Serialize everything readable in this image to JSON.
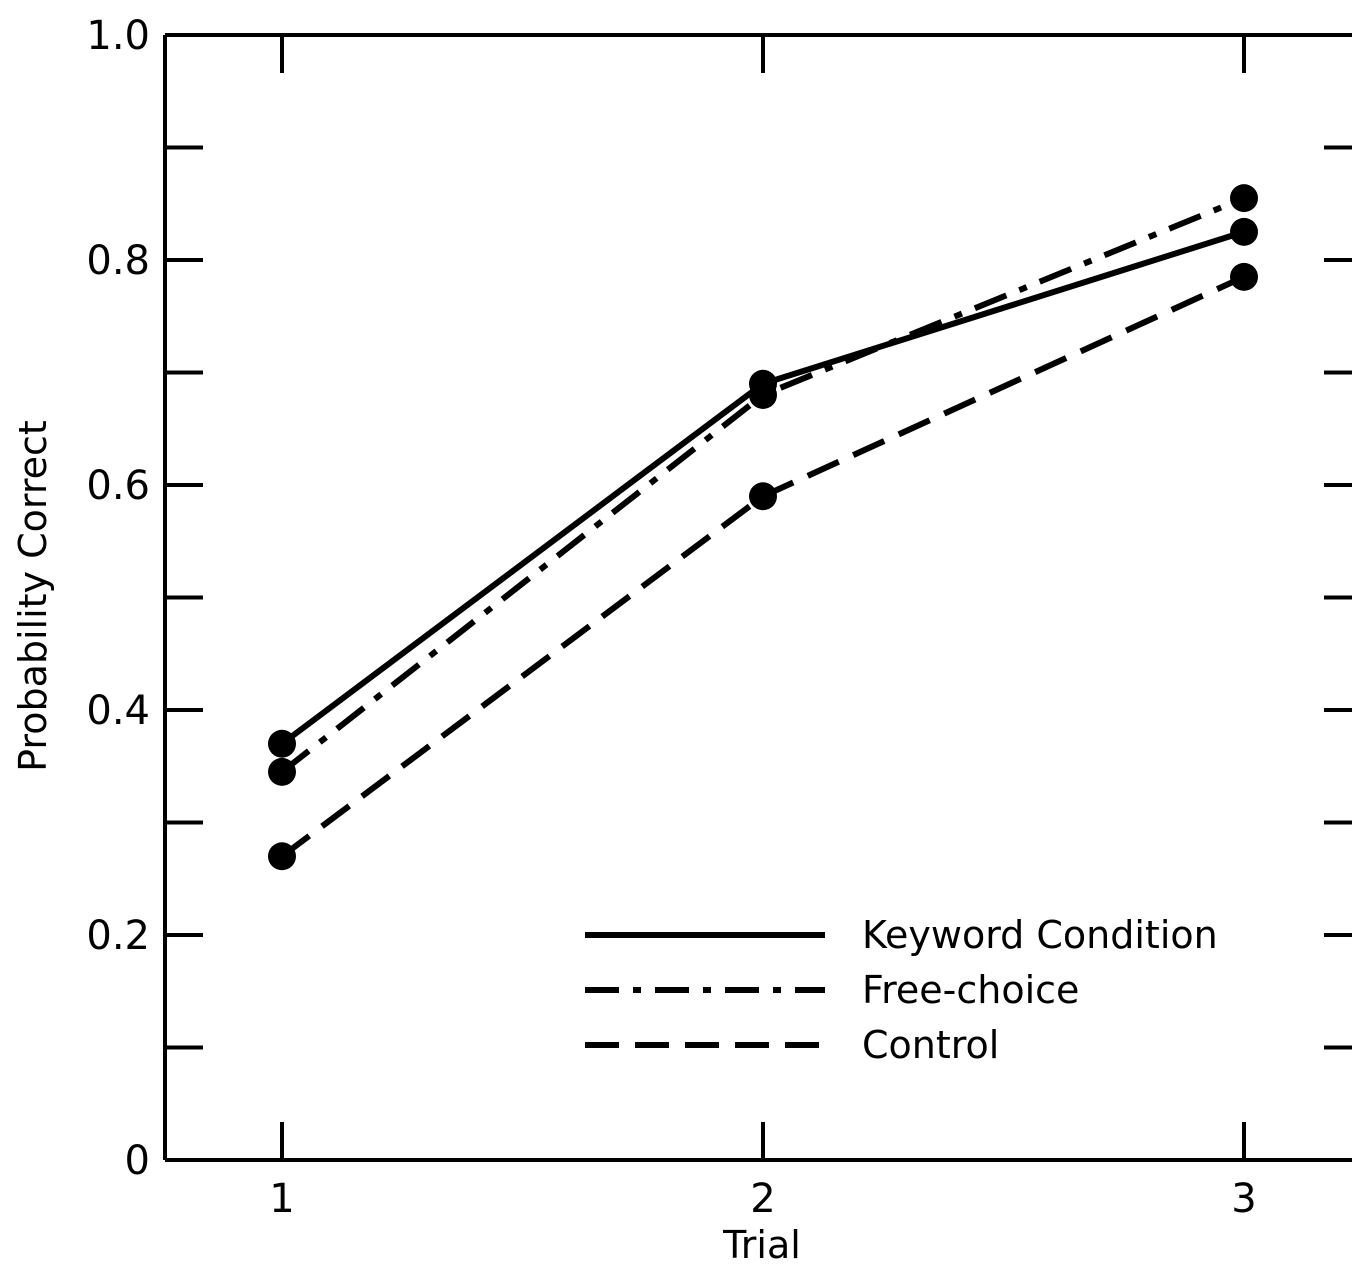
{
  "chart_data": {
    "type": "line",
    "xlabel": "Trial",
    "ylabel": "Probability Correct",
    "x": [
      1,
      2,
      3
    ],
    "x_tick_labels": [
      "1",
      "2",
      "3"
    ],
    "xlim": [
      0.76,
      3.2
    ],
    "ylim": [
      0,
      1.0
    ],
    "y_tick_labels": [
      {
        "value": 0,
        "label": "0"
      },
      {
        "value": 0.2,
        "label": "0.2"
      },
      {
        "value": 0.4,
        "label": "0.4"
      },
      {
        "value": 0.6,
        "label": "0.6"
      },
      {
        "value": 0.8,
        "label": "0.8"
      },
      {
        "value": 1.0,
        "label": "1.0"
      }
    ],
    "y_minor_ticks": [
      0.1,
      0.3,
      0.5,
      0.7,
      0.9
    ],
    "grid": false,
    "legend_position": "bottom-right",
    "series": [
      {
        "name": "Keyword Condition",
        "style": "solid",
        "values": [
          0.37,
          0.69,
          0.825
        ]
      },
      {
        "name": "Free-choice",
        "style": "dash-dot",
        "values": [
          0.345,
          0.68,
          0.855
        ]
      },
      {
        "name": "Control",
        "style": "dashed",
        "values": [
          0.27,
          0.59,
          0.785
        ]
      }
    ],
    "colors": {
      "ink": "#000000",
      "background": "#ffffff"
    }
  }
}
